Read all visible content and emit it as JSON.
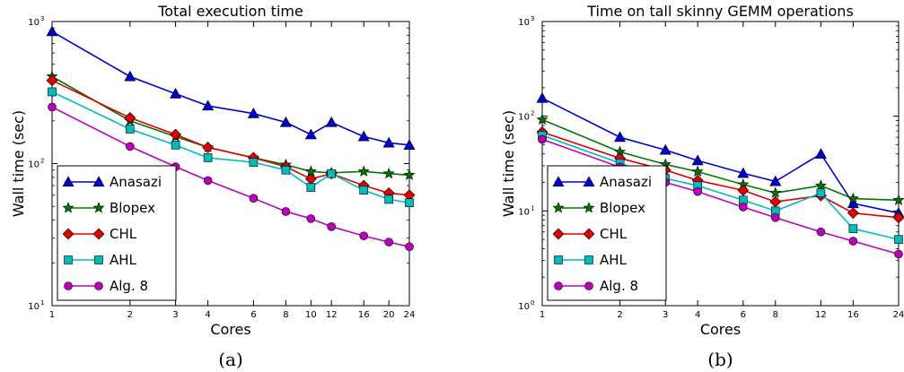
{
  "chart_data": [
    {
      "type": "line",
      "title": "Total execution time",
      "xlabel": "Cores",
      "ylabel": "Wall time (sec)",
      "caption": "(a)",
      "xscale": "log",
      "yscale": "log",
      "xlim": [
        1,
        24
      ],
      "ylim": [
        10,
        1000
      ],
      "x": [
        1,
        2,
        3,
        4,
        6,
        8,
        10,
        12,
        16,
        20,
        24
      ],
      "xtick_labels": [
        "1",
        "2",
        "3",
        "4",
        "6",
        "8",
        "10",
        "12",
        "16",
        "20",
        "24"
      ],
      "ytick_labels": [
        "10",
        "10",
        "10"
      ],
      "ytick_exponents": [
        "1",
        "2",
        "3"
      ],
      "ytick_values": [
        10,
        100,
        1000
      ],
      "legend_position": "lower-left",
      "series": [
        {
          "name": "Anasazi",
          "color": "#0000cc",
          "marker": "triangle",
          "values": [
            850,
            410,
            310,
            255,
            225,
            195,
            160,
            195,
            155,
            140,
            135
          ]
        },
        {
          "name": "Blopex",
          "color": "#007700",
          "marker": "star",
          "values": [
            410,
            200,
            155,
            130,
            110,
            98,
            88,
            86,
            88,
            85,
            83
          ]
        },
        {
          "name": "CHL",
          "color": "#dd0000",
          "marker": "diamond",
          "values": [
            385,
            210,
            160,
            130,
            110,
            95,
            78,
            85,
            70,
            62,
            60
          ]
        },
        {
          "name": "AHL",
          "color": "#00bbbb",
          "marker": "square",
          "values": [
            320,
            175,
            135,
            110,
            102,
            90,
            68,
            85,
            65,
            56,
            53
          ]
        },
        {
          "name": "Alg. 8",
          "color": "#bb00bb",
          "marker": "circle",
          "values": [
            250,
            132,
            95,
            76,
            57,
            46,
            41,
            36,
            31,
            28,
            26
          ]
        }
      ]
    },
    {
      "type": "line",
      "title": "Time on tall skinny GEMM operations",
      "xlabel": "Cores",
      "ylabel": "Wall time (sec)",
      "caption": "(b)",
      "xscale": "log",
      "yscale": "log",
      "xlim": [
        1,
        24
      ],
      "ylim": [
        1,
        1000
      ],
      "x": [
        1,
        2,
        3,
        4,
        6,
        8,
        12,
        16,
        24
      ],
      "xtick_labels": [
        "1",
        "2",
        "3",
        "4",
        "6",
        "8",
        "12",
        "16",
        "24"
      ],
      "ytick_labels": [
        "10",
        "10",
        "10",
        "10"
      ],
      "ytick_exponents": [
        "0",
        "1",
        "2",
        "3"
      ],
      "ytick_values": [
        1,
        10,
        100,
        1000
      ],
      "legend_position": "lower-left",
      "series": [
        {
          "name": "Anasazi",
          "color": "#0000cc",
          "marker": "triangle",
          "values": [
            155,
            60,
            44,
            34,
            25,
            20.5,
            40,
            12,
            9.5
          ]
        },
        {
          "name": "Blopex",
          "color": "#007700",
          "marker": "star",
          "values": [
            92,
            42,
            31,
            26,
            19,
            15.5,
            18.5,
            13.5,
            13
          ]
        },
        {
          "name": "CHL",
          "color": "#dd0000",
          "marker": "diamond",
          "values": [
            68,
            36,
            27,
            21,
            16.5,
            12.5,
            14.5,
            9.5,
            8.5
          ]
        },
        {
          "name": "AHL",
          "color": "#00bbbb",
          "marker": "square",
          "values": [
            63,
            32,
            22,
            18.5,
            13,
            10,
            15.5,
            6.5,
            5
          ]
        },
        {
          "name": "Alg. 8",
          "color": "#bb00bb",
          "marker": "circle",
          "values": [
            57,
            29,
            20,
            16,
            11,
            8.5,
            6,
            4.8,
            3.5
          ]
        }
      ]
    }
  ]
}
